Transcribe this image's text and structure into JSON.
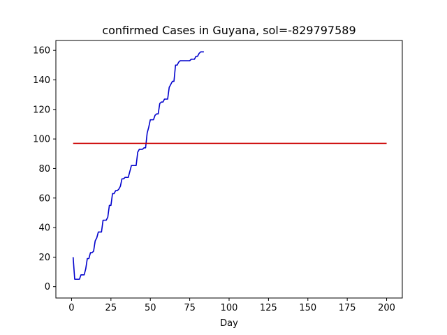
{
  "chart_data": {
    "type": "line",
    "title": "confirmed Cases in Guyana, sol=-829797589",
    "xlabel": "Day",
    "ylabel": "",
    "xlim": [
      -9.95,
      209.95
    ],
    "ylim": [
      -7.7,
      166.7
    ],
    "x_ticks": [
      0,
      25,
      50,
      75,
      100,
      125,
      150,
      175,
      200
    ],
    "y_ticks": [
      0,
      20,
      40,
      60,
      80,
      100,
      120,
      140,
      160
    ],
    "grid": false,
    "series": [
      {
        "color": "#0000cc",
        "x": [
          1,
          2,
          3,
          4,
          5,
          6,
          7,
          8,
          9,
          10,
          11,
          12,
          13,
          14,
          15,
          16,
          17,
          18,
          19,
          20,
          21,
          22,
          23,
          24,
          25,
          26,
          27,
          28,
          29,
          30,
          31,
          32,
          33,
          34,
          35,
          36,
          37,
          38,
          39,
          40,
          41,
          42,
          43,
          44,
          45,
          46,
          47,
          48,
          49,
          50,
          51,
          52,
          53,
          54,
          55,
          56,
          57,
          58,
          59,
          60,
          61,
          62,
          63,
          64,
          65,
          66,
          67,
          68,
          69,
          70,
          71,
          72,
          73,
          74,
          75,
          76,
          77,
          78,
          79,
          80,
          81,
          82,
          83,
          84
        ],
        "y": [
          20,
          5,
          5,
          5,
          5,
          8,
          8,
          8,
          12,
          19,
          19,
          23,
          23,
          24,
          31,
          33,
          37,
          37,
          37,
          45,
          45,
          45,
          47,
          55,
          55,
          63,
          63,
          65,
          65,
          66,
          68,
          73,
          73,
          74,
          74,
          74,
          78,
          82,
          82,
          82,
          82,
          91,
          93,
          93,
          93,
          94,
          94,
          104,
          108,
          113,
          113,
          113,
          116,
          117,
          117,
          124,
          125,
          125,
          127,
          127,
          127,
          135,
          137,
          139,
          139,
          150,
          150,
          152,
          153,
          153,
          153,
          153,
          153,
          153,
          153,
          154,
          154,
          154,
          156,
          156,
          158,
          159,
          159,
          159
        ]
      },
      {
        "color": "#cc0000",
        "x": [
          1,
          200
        ],
        "y": [
          97,
          97
        ]
      }
    ]
  }
}
